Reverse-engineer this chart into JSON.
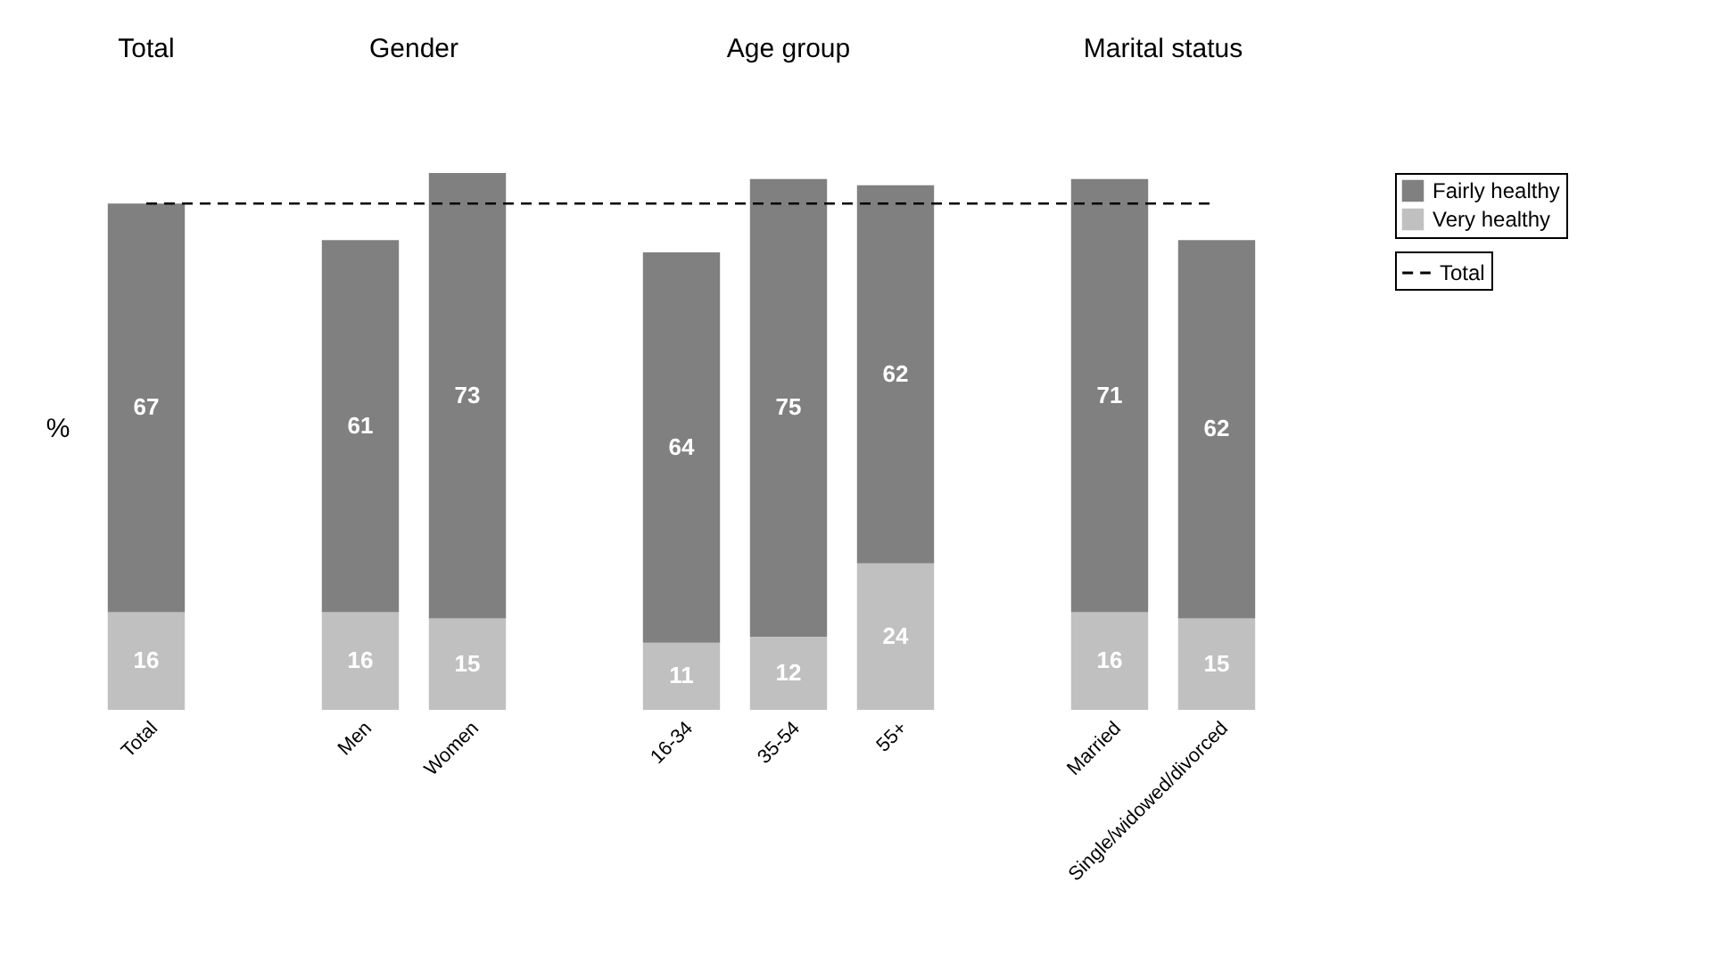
{
  "chart_data": {
    "type": "bar",
    "stacked": true,
    "ylabel": "%",
    "categories": [
      "Total",
      null,
      "Men",
      "Women",
      null,
      "16-34",
      "35-54",
      "55+",
      null,
      "Married",
      "Single/widowed/divorced"
    ],
    "series": [
      {
        "name": "Very healthy",
        "color": "#c0c0c0",
        "values": [
          16,
          null,
          16,
          15,
          null,
          11,
          12,
          24,
          null,
          16,
          15
        ]
      },
      {
        "name": "Fairly healthy",
        "color": "#808080",
        "values": [
          67,
          null,
          61,
          73,
          null,
          64,
          75,
          62,
          null,
          71,
          62
        ]
      }
    ],
    "ref_lines": [
      {
        "axis": "y",
        "value": 83,
        "label": "Total",
        "line_style": "dashed",
        "color": "#000000"
      }
    ],
    "annotations": [
      "Total",
      "Gender",
      "Age group",
      "Marital status"
    ],
    "data_labels": true,
    "legend": "right",
    "tick_labels": "x"
  }
}
